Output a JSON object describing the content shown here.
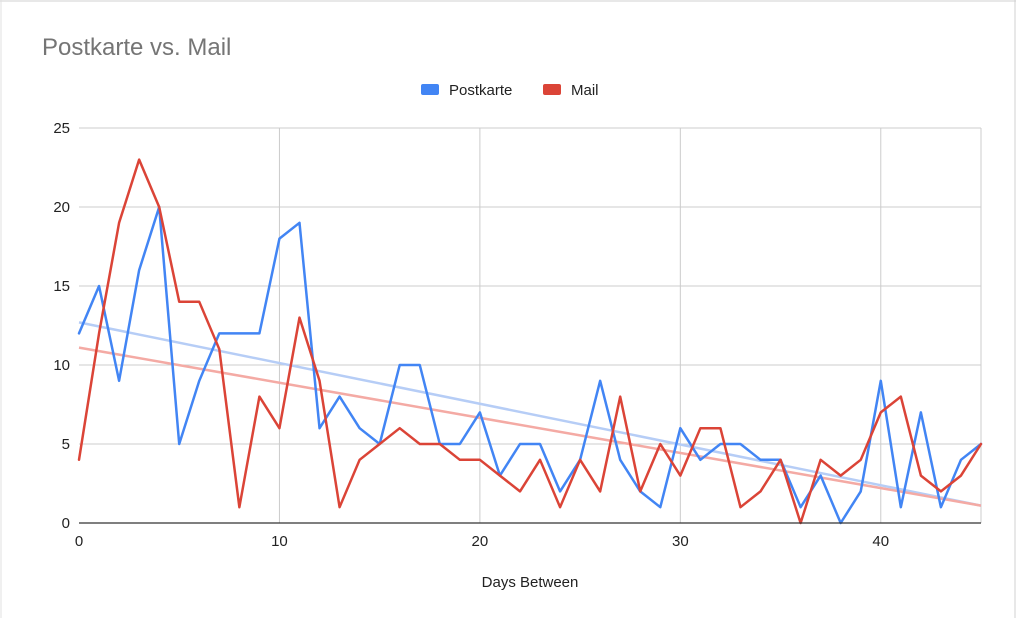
{
  "chart_data": {
    "type": "line",
    "title": "Postkarte vs. Mail",
    "xlabel": "Days Between",
    "ylabel": "",
    "xlim": [
      0,
      45
    ],
    "ylim": [
      0,
      25
    ],
    "x_ticks": [
      "0",
      "10",
      "20",
      "30",
      "40"
    ],
    "y_ticks": [
      "0",
      "5",
      "10",
      "15",
      "20",
      "25"
    ],
    "grid": true,
    "legend_position": "top",
    "x": [
      0,
      1,
      2,
      3,
      4,
      5,
      6,
      7,
      8,
      9,
      10,
      11,
      12,
      13,
      14,
      15,
      16,
      17,
      18,
      19,
      20,
      21,
      22,
      23,
      24,
      25,
      26,
      27,
      28,
      29,
      30,
      31,
      32,
      33,
      34,
      35,
      36,
      37,
      38,
      39,
      40,
      41,
      42,
      43,
      44,
      45
    ],
    "series": [
      {
        "name": "Postkarte",
        "color": "#4285f4",
        "values": [
          12,
          15,
          9,
          16,
          20,
          5,
          9,
          12,
          12,
          12,
          18,
          19,
          6,
          8,
          6,
          5,
          10,
          10,
          5,
          5,
          7,
          3,
          5,
          5,
          2,
          4,
          9,
          4,
          2,
          1,
          6,
          4,
          5,
          5,
          4,
          4,
          1,
          3,
          0,
          2,
          9,
          1,
          7,
          1,
          4,
          5
        ],
        "trendline": {
          "color": "#b6cdf6",
          "start": 12.7,
          "end": 1.1
        }
      },
      {
        "name": "Mail",
        "color": "#db4437",
        "values": [
          4,
          12,
          19,
          23,
          20,
          14,
          14,
          11,
          1,
          8,
          6,
          13,
          9,
          1,
          4,
          5,
          6,
          5,
          5,
          4,
          4,
          3,
          2,
          4,
          1,
          4,
          2,
          8,
          2,
          5,
          3,
          6,
          6,
          1,
          2,
          4,
          0,
          4,
          3,
          4,
          7,
          8,
          3,
          2,
          3,
          5
        ],
        "trendline": {
          "color": "#f4aaa4",
          "start": 11.1,
          "end": 1.1
        }
      }
    ]
  }
}
